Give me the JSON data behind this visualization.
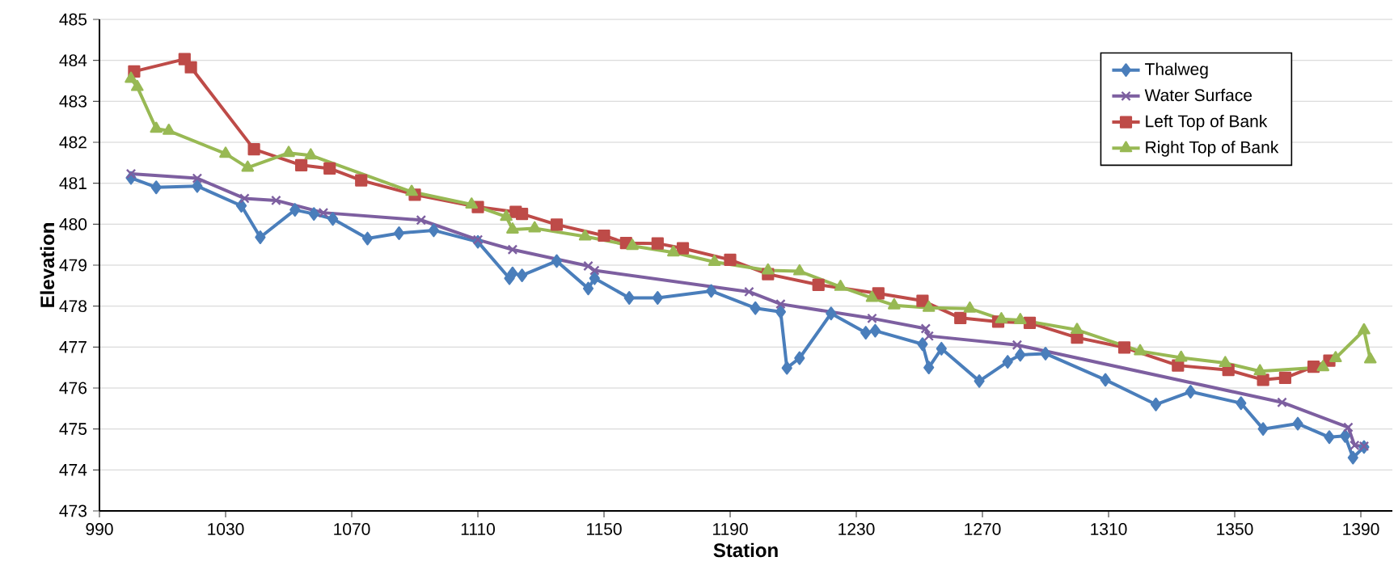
{
  "chart_data": {
    "type": "line",
    "xlabel": "Station",
    "ylabel": "Elevation",
    "xlim": [
      990,
      1400
    ],
    "xticks": [
      990,
      1030,
      1070,
      1110,
      1150,
      1190,
      1230,
      1270,
      1310,
      1350,
      1390
    ],
    "ylim": [
      473,
      485
    ],
    "yticks": [
      473,
      474,
      475,
      476,
      477,
      478,
      479,
      480,
      481,
      482,
      483,
      484,
      485
    ],
    "grid": "y",
    "legend": "top right",
    "line_style": "solid",
    "series": [
      {
        "name": "Thalweg",
        "color": "#4a7ebb",
        "marker": "diamond",
        "x": [
          1000,
          1008,
          1021,
          1035,
          1041,
          1052,
          1058,
          1064,
          1075,
          1085,
          1096,
          1110,
          1120,
          1121,
          1124,
          1135,
          1145,
          1147,
          1158,
          1167,
          1184,
          1198,
          1206,
          1208,
          1212,
          1222,
          1233,
          1236,
          1251,
          1253,
          1257,
          1269,
          1278,
          1282,
          1290,
          1309,
          1325,
          1336,
          1352,
          1359,
          1370,
          1380,
          1385,
          1387.5,
          1391
        ],
        "values": [
          481.13,
          480.9,
          480.93,
          480.45,
          479.68,
          480.35,
          480.25,
          480.13,
          479.65,
          479.78,
          479.85,
          479.57,
          478.68,
          478.8,
          478.75,
          479.1,
          478.43,
          478.68,
          478.2,
          478.2,
          478.37,
          477.95,
          477.86,
          476.49,
          476.73,
          477.82,
          477.35,
          477.4,
          477.07,
          476.5,
          476.96,
          476.17,
          476.64,
          476.81,
          476.84,
          476.2,
          475.6,
          475.91,
          475.63,
          475.0,
          475.13,
          474.8,
          474.83,
          474.3,
          474.56
        ]
      },
      {
        "name": "Water Surface",
        "color": "#7d5fa0",
        "marker": "cross",
        "x": [
          1000,
          1021,
          1036,
          1046,
          1061,
          1092,
          1110,
          1121,
          1145,
          1147,
          1196,
          1206,
          1235,
          1252,
          1253,
          1281,
          1365,
          1386,
          1388,
          1391
        ],
        "values": [
          481.23,
          481.12,
          480.63,
          480.58,
          480.28,
          480.1,
          479.62,
          479.38,
          478.98,
          478.87,
          478.35,
          478.05,
          477.7,
          477.45,
          477.27,
          477.05,
          475.65,
          475.04,
          474.6,
          474.58
        ]
      },
      {
        "name": "Left Top of Bank",
        "color": "#be4b48",
        "marker": "square",
        "x": [
          1001,
          1017,
          1019,
          1039,
          1054,
          1063,
          1073,
          1090,
          1110,
          1122,
          1124,
          1135,
          1150,
          1157,
          1167,
          1175,
          1190,
          1202,
          1218,
          1237,
          1251,
          1263,
          1275,
          1285,
          1300,
          1315,
          1332,
          1348,
          1359,
          1366,
          1375,
          1380
        ],
        "values": [
          483.73,
          484.03,
          483.83,
          481.83,
          481.44,
          481.36,
          481.07,
          480.72,
          480.42,
          480.3,
          480.25,
          479.99,
          479.72,
          479.54,
          479.53,
          479.41,
          479.13,
          478.78,
          478.52,
          478.31,
          478.13,
          477.71,
          477.62,
          477.59,
          477.23,
          476.99,
          476.55,
          476.44,
          476.2,
          476.25,
          476.52,
          476.67
        ]
      },
      {
        "name": "Right Top of Bank",
        "color": "#98b954",
        "marker": "triangle",
        "x": [
          1000,
          1002,
          1008,
          1012,
          1030,
          1037,
          1050,
          1057,
          1089,
          1108,
          1119,
          1121,
          1128,
          1144,
          1159,
          1172,
          1185,
          1202,
          1212,
          1225,
          1235,
          1242,
          1253,
          1266,
          1276,
          1282,
          1300,
          1320,
          1333,
          1347,
          1358,
          1378,
          1382,
          1391,
          1393
        ],
        "values": [
          483.55,
          483.35,
          482.33,
          482.28,
          481.72,
          481.38,
          481.74,
          481.68,
          480.79,
          480.48,
          480.18,
          479.87,
          479.9,
          479.7,
          479.47,
          479.31,
          479.08,
          478.87,
          478.85,
          478.47,
          478.2,
          478.02,
          477.96,
          477.94,
          477.68,
          477.66,
          477.42,
          476.9,
          476.74,
          476.61,
          476.41,
          476.51,
          476.73,
          477.41,
          476.7
        ]
      }
    ]
  }
}
